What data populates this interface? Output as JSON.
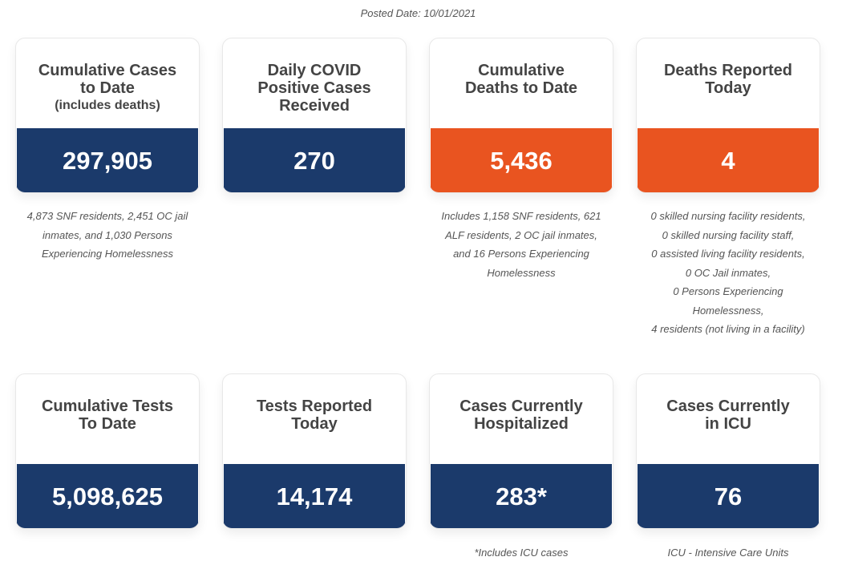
{
  "posted_date": "Posted Date: 10/01/2021",
  "colors": {
    "navy": "#1b3a6b",
    "orange": "#e95420"
  },
  "cards": [
    {
      "id": "cumulative-cases",
      "title": [
        "Cumulative Cases",
        "to Date"
      ],
      "subtitle": "(includes deaths)",
      "value": "297,905",
      "color": "navy",
      "note": [
        "4,873 SNF residents, 2,451 OC jail",
        "inmates, and 1,030 Persons",
        "Experiencing Homelessness"
      ]
    },
    {
      "id": "daily-positive-cases",
      "title": [
        "Daily COVID",
        "Positive Cases",
        "Received"
      ],
      "value": "270",
      "color": "navy",
      "note": []
    },
    {
      "id": "cumulative-deaths",
      "title": [
        "Cumulative",
        "Deaths to Date"
      ],
      "value": "5,436",
      "color": "orange",
      "note": [
        "Includes 1,158 SNF residents, 621",
        "ALF residents, 2 OC jail inmates,",
        "and 16 Persons Experiencing",
        "Homelessness"
      ]
    },
    {
      "id": "deaths-reported-today",
      "title": [
        "Deaths Reported",
        "Today"
      ],
      "value": "4",
      "color": "orange",
      "note": [
        "0 skilled nursing facility residents,",
        "0 skilled nursing facility staff,",
        "0 assisted living facility residents,",
        "0 OC Jail inmates,",
        "0 Persons Experiencing",
        "Homelessness,",
        "4 residents (not living in a facility)"
      ]
    },
    {
      "id": "cumulative-tests",
      "title": [
        "Cumulative Tests",
        "To Date"
      ],
      "value": "5,098,625",
      "color": "navy",
      "note": []
    },
    {
      "id": "tests-reported-today",
      "title": [
        "Tests Reported",
        "Today"
      ],
      "value": "14,174",
      "color": "navy",
      "note": []
    },
    {
      "id": "cases-hospitalized",
      "title": [
        "Cases Currently",
        "Hospitalized"
      ],
      "value": "283*",
      "color": "navy",
      "note": [
        "*Includes ICU cases"
      ]
    },
    {
      "id": "cases-icu",
      "title": [
        "Cases Currently",
        "in ICU"
      ],
      "value": "76",
      "color": "navy",
      "note": [
        "ICU - Intensive Care Units"
      ]
    }
  ]
}
